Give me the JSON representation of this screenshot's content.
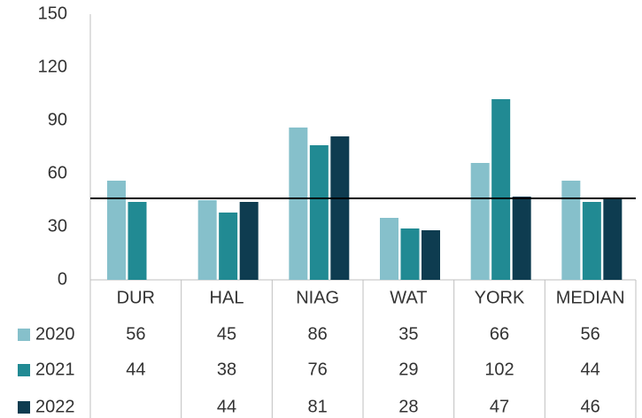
{
  "chart_data": {
    "type": "bar",
    "categories": [
      "DUR",
      "HAL",
      "NIAG",
      "WAT",
      "YORK",
      "MEDIAN"
    ],
    "series": [
      {
        "name": "2020",
        "color": "#86c0cb",
        "values": [
          56,
          45,
          86,
          35,
          66,
          56
        ]
      },
      {
        "name": "2021",
        "color": "#218a93",
        "values": [
          44,
          38,
          76,
          29,
          102,
          44
        ]
      },
      {
        "name": "2022",
        "color": "#0e3c50",
        "values": [
          null,
          44,
          81,
          28,
          47,
          46
        ]
      }
    ],
    "reference_line": 46,
    "ylim": [
      0,
      150
    ],
    "yticks": [
      0,
      30,
      60,
      90,
      120,
      150
    ],
    "grid": false
  }
}
